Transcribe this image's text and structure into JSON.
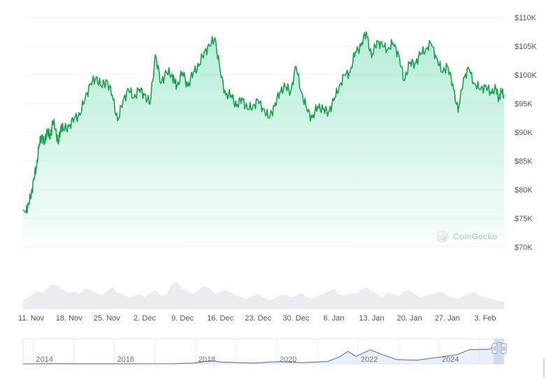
{
  "watermark": {
    "brand": "CoinGecko",
    "logo_icon": "coingecko-logo-icon"
  },
  "colors": {
    "line": "#16a34a",
    "fill_top": "#16c784",
    "volume": "#e5e7eb",
    "grid": "#f1f3f5",
    "navigator_line": "#3b6fb3",
    "navigator_fill": "#d6e2f3"
  },
  "chart_data": {
    "type": "area",
    "title": "",
    "xlabel": "",
    "ylabel": "",
    "ylim": [
      70000,
      110000
    ],
    "y_ticks": [
      "$110K",
      "$105K",
      "$100K",
      "$95K",
      "$90K",
      "$85K",
      "$80K",
      "$75K",
      "$70K"
    ],
    "y_tick_values": [
      110000,
      105000,
      100000,
      95000,
      90000,
      85000,
      80000,
      75000,
      70000
    ],
    "x_ticks": [
      "11. Nov",
      "18. Nov",
      "25. Nov",
      "2. Dec",
      "9. Dec",
      "16. Dec",
      "23. Dec",
      "30. Dec",
      "6. Jan",
      "13. Jan",
      "20. Jan",
      "27. Jan",
      "3. Feb"
    ],
    "x_range_days": [
      -1.5,
      87.5
    ],
    "series": [
      {
        "x_days": [
          -1.5,
          -1,
          -0.5,
          0,
          0.5,
          1,
          1.5,
          2,
          2.5,
          3,
          3.5,
          4,
          4.5,
          5,
          5.5,
          6,
          7,
          8,
          9,
          10,
          11,
          12,
          13,
          14,
          15,
          16,
          17,
          18,
          19,
          20,
          21,
          22,
          23,
          24,
          25,
          26,
          26.5,
          27,
          28,
          29,
          30,
          31,
          32,
          33,
          34,
          35,
          36,
          37,
          38,
          39,
          40,
          41,
          42,
          43,
          44,
          45,
          46,
          47,
          48,
          49,
          50,
          51,
          52,
          53,
          54,
          55,
          56,
          57,
          58,
          59,
          60,
          61,
          62,
          63,
          64,
          65,
          66,
          67,
          68,
          69,
          70,
          71,
          72,
          73,
          74,
          75,
          76,
          77,
          78,
          79,
          80,
          81,
          82,
          83,
          84,
          85,
          86,
          86.5,
          87,
          87.5
        ],
        "values": [
          76500,
          76000,
          77500,
          79000,
          82000,
          84000,
          88000,
          89500,
          88000,
          90500,
          89000,
          92000,
          90500,
          88000,
          91000,
          90500,
          91000,
          92500,
          93000,
          96000,
          98500,
          99500,
          98000,
          99000,
          96500,
          92000,
          95500,
          97500,
          96000,
          97500,
          96500,
          95000,
          103500,
          98500,
          100500,
          100000,
          99000,
          98000,
          100500,
          98000,
          100500,
          101500,
          104000,
          105000,
          106500,
          100500,
          96500,
          96500,
          94500,
          96000,
          94000,
          94500,
          95500,
          94000,
          92500,
          94500,
          97000,
          98000,
          97000,
          101500,
          97000,
          94000,
          92500,
          94500,
          94000,
          93500,
          95500,
          98000,
          100000,
          100500,
          104000,
          105000,
          107500,
          103000,
          106000,
          105000,
          104500,
          105500,
          103500,
          99000,
          102000,
          102000,
          103500,
          104500,
          105500,
          103000,
          100500,
          101500,
          98500,
          93500,
          99500,
          101000,
          98500,
          97500,
          98000,
          97000,
          97500,
          96000,
          97000,
          96500
        ]
      }
    ],
    "navigator": {
      "x_ticks": [
        "2014",
        "2016",
        "2018",
        "2020",
        "2022",
        "2024"
      ],
      "x_years": [
        2013.3,
        2014,
        2015,
        2016,
        2017,
        2017.5,
        2017.95,
        2018.2,
        2018.5,
        2019,
        2019.4,
        2019.6,
        2020,
        2020.2,
        2020.8,
        2021.1,
        2021.3,
        2021.5,
        2021.85,
        2022.2,
        2022.5,
        2023,
        2023.5,
        2024,
        2024.3,
        2024.8,
        2025,
        2025.1
      ],
      "values": [
        100,
        500,
        300,
        400,
        1000,
        4000,
        15000,
        8000,
        6500,
        3500,
        9000,
        10000,
        7000,
        6000,
        11000,
        33000,
        58000,
        35000,
        65000,
        40000,
        20000,
        17000,
        30000,
        43000,
        66000,
        68000,
        100000,
        97000
      ],
      "ylim": [
        0,
        110000
      ],
      "x_range": [
        2013.3,
        2025.15
      ]
    },
    "volume": {
      "x_days": [
        -1.5,
        0,
        1,
        2,
        3,
        4,
        5,
        6,
        7,
        8,
        9,
        10,
        11,
        12,
        13,
        14,
        15,
        16,
        17,
        18,
        19,
        20,
        21,
        22,
        23,
        24,
        25,
        26,
        27,
        28,
        29,
        30,
        31,
        32,
        33,
        34,
        35,
        36,
        37,
        38,
        39,
        40,
        41,
        42,
        43,
        44,
        45,
        46,
        47,
        48,
        49,
        50,
        51,
        52,
        53,
        54,
        55,
        56,
        57,
        58,
        59,
        60,
        61,
        62,
        63,
        64,
        65,
        66,
        67,
        68,
        69,
        70,
        71,
        72,
        73,
        74,
        75,
        76,
        77,
        78,
        79,
        80,
        81,
        82,
        83,
        84,
        85,
        86,
        87,
        87.5
      ],
      "values": [
        6,
        9,
        12,
        11,
        14,
        17,
        16,
        13,
        11,
        12,
        10,
        14,
        13,
        11,
        9,
        12,
        15,
        11,
        10,
        8,
        9,
        10,
        8,
        11,
        13,
        9,
        10,
        17,
        19,
        14,
        12,
        10,
        13,
        16,
        14,
        10,
        12,
        13,
        11,
        9,
        8,
        7,
        9,
        10,
        8,
        6,
        7,
        9,
        10,
        8,
        9,
        11,
        8,
        7,
        9,
        10,
        12,
        14,
        10,
        9,
        11,
        10,
        13,
        15,
        12,
        10,
        8,
        11,
        10,
        9,
        12,
        13,
        10,
        8,
        9,
        10,
        11,
        12,
        9,
        8,
        7,
        9,
        10,
        12,
        9,
        8,
        7,
        6,
        5,
        5
      ],
      "ylim": [
        0,
        20
      ]
    }
  }
}
